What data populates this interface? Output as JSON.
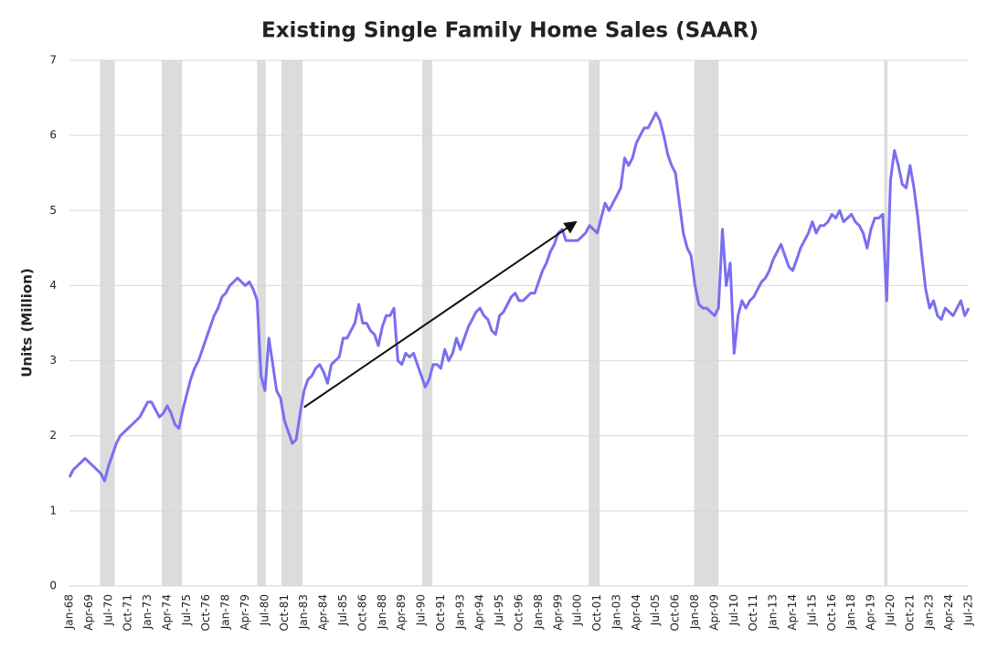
{
  "chart_data": {
    "type": "line",
    "title": "Existing Single Family Home Sales (SAAR)",
    "y_label": "Units (Million)",
    "categories": [
      "Jan-68",
      null,
      null,
      null,
      null,
      "Apr-69",
      null,
      null,
      null,
      null,
      "Jul-70",
      null,
      null,
      null,
      null,
      "Oct-71",
      null,
      null,
      null,
      null,
      "Jan-73",
      null,
      null,
      null,
      null,
      "Apr-74",
      null,
      null,
      null,
      null,
      "Jul-75",
      null,
      null,
      null,
      null,
      "Oct-76",
      null,
      null,
      null,
      null,
      "Jan-78",
      null,
      null,
      null,
      null,
      "Apr-79",
      null,
      null,
      null,
      null,
      "Jul-80",
      null,
      null,
      null,
      null,
      "Oct-81",
      null,
      null,
      null,
      null,
      "Jan-83",
      null,
      null,
      null,
      null,
      "Apr-84",
      null,
      null,
      null,
      null,
      "Jul-85",
      null,
      null,
      null,
      null,
      "Oct-86",
      null,
      null,
      null,
      null,
      "Jan-88",
      null,
      null,
      null,
      null,
      "Apr-89",
      null,
      null,
      null,
      null,
      "Jul-90",
      null,
      null,
      null,
      null,
      "Oct-91",
      null,
      null,
      null,
      null,
      "Jan-93",
      null,
      null,
      null,
      null,
      "Apr-94",
      null,
      null,
      null,
      null,
      "Jul-95",
      null,
      null,
      null,
      null,
      "Oct-96",
      null,
      null,
      null,
      null,
      "Jan-98",
      null,
      null,
      null,
      null,
      "Apr-99",
      null,
      null,
      null,
      null,
      "Jul-00",
      null,
      null,
      null,
      null,
      "Oct-01",
      null,
      null,
      null,
      null,
      "Jan-03",
      null,
      null,
      null,
      null,
      "Apr-04",
      null,
      null,
      null,
      null,
      "Jul-05",
      null,
      null,
      null,
      null,
      "Oct-06",
      null,
      null,
      null,
      null,
      "Jan-08",
      null,
      null,
      null,
      null,
      "Apr-09",
      null,
      null,
      null,
      null,
      "Jul-10",
      null,
      null,
      null,
      null,
      "Oct-11",
      null,
      null,
      null,
      null,
      "Jan-13",
      null,
      null,
      null,
      null,
      "Apr-14",
      null,
      null,
      null,
      null,
      "Jul-15",
      null,
      null,
      null,
      null,
      "Oct-16",
      null,
      null,
      null,
      null,
      "Jan-18",
      null,
      null,
      null,
      null,
      "Apr-19",
      null,
      null,
      null,
      null,
      "Jul-20",
      null,
      null,
      null,
      null,
      "Oct-21",
      null,
      null,
      null,
      null,
      "Jan-23",
      null,
      null,
      null,
      null,
      "Apr-24",
      null,
      null,
      null,
      null,
      "Jul-25"
    ],
    "values": [
      1.45,
      1.55,
      1.6,
      1.65,
      1.7,
      1.65,
      1.6,
      1.55,
      1.5,
      1.4,
      1.6,
      1.75,
      1.9,
      2.0,
      2.05,
      2.1,
      2.15,
      2.2,
      2.25,
      2.35,
      2.45,
      2.45,
      2.35,
      2.25,
      2.3,
      2.4,
      2.3,
      2.15,
      2.1,
      2.35,
      2.55,
      2.75,
      2.9,
      3.0,
      3.15,
      3.3,
      3.45,
      3.6,
      3.7,
      3.85,
      3.9,
      4.0,
      4.05,
      4.1,
      4.05,
      4.0,
      4.05,
      3.95,
      3.8,
      2.8,
      2.6,
      3.3,
      2.95,
      2.6,
      2.5,
      2.2,
      2.05,
      1.9,
      1.95,
      2.3,
      2.6,
      2.75,
      2.8,
      2.9,
      2.95,
      2.85,
      2.7,
      2.95,
      3.0,
      3.05,
      3.3,
      3.3,
      3.4,
      3.5,
      3.75,
      3.5,
      3.5,
      3.4,
      3.35,
      3.2,
      3.45,
      3.6,
      3.6,
      3.7,
      3.0,
      2.95,
      3.1,
      3.05,
      3.1,
      2.95,
      2.8,
      2.65,
      2.75,
      2.95,
      2.95,
      2.9,
      3.15,
      3.0,
      3.1,
      3.3,
      3.15,
      3.3,
      3.45,
      3.55,
      3.65,
      3.7,
      3.6,
      3.55,
      3.4,
      3.35,
      3.6,
      3.65,
      3.75,
      3.85,
      3.9,
      3.8,
      3.8,
      3.85,
      3.9,
      3.9,
      4.05,
      4.2,
      4.3,
      4.45,
      4.55,
      4.7,
      4.75,
      4.6,
      4.6,
      4.6,
      4.6,
      4.65,
      4.7,
      4.8,
      4.75,
      4.7,
      4.9,
      5.1,
      5.0,
      5.1,
      5.2,
      5.3,
      5.7,
      5.6,
      5.7,
      5.9,
      6.0,
      6.1,
      6.1,
      6.2,
      6.3,
      6.2,
      6.0,
      5.75,
      5.6,
      5.5,
      5.1,
      4.7,
      4.5,
      4.4,
      4.0,
      3.75,
      3.7,
      3.7,
      3.65,
      3.6,
      3.7,
      4.75,
      4.0,
      4.3,
      3.1,
      3.6,
      3.8,
      3.7,
      3.8,
      3.85,
      3.95,
      4.05,
      4.1,
      4.2,
      4.35,
      4.45,
      4.55,
      4.4,
      4.25,
      4.2,
      4.35,
      4.5,
      4.6,
      4.7,
      4.85,
      4.7,
      4.8,
      4.8,
      4.85,
      4.95,
      4.9,
      5.0,
      4.85,
      4.9,
      4.95,
      4.85,
      4.8,
      4.7,
      4.5,
      4.75,
      4.9,
      4.9,
      4.95,
      3.8,
      5.4,
      5.8,
      5.6,
      5.35,
      5.3,
      5.6,
      5.3,
      4.9,
      4.4,
      3.95,
      3.7,
      3.8,
      3.6,
      3.55,
      3.7,
      3.65,
      3.6,
      3.7,
      3.8,
      3.6,
      3.7
    ],
    "color": "#7b6ef0",
    "ylim": [
      0,
      7
    ],
    "yticks": [
      0,
      1,
      2,
      3,
      4,
      5,
      6,
      7
    ],
    "grid": true,
    "bands": [
      [
        1969.95,
        1970.9
      ],
      [
        1973.9,
        1975.2
      ],
      [
        1980.0,
        1980.55
      ],
      [
        1981.55,
        1982.9
      ],
      [
        1990.55,
        1991.2
      ],
      [
        2001.2,
        2001.9
      ],
      [
        2007.95,
        2009.5
      ],
      [
        2020.1,
        2020.3
      ]
    ],
    "band_color": "#dcdcdc",
    "arrow": {
      "from": [
        1983.0,
        2.38
      ],
      "to": [
        2000.4,
        4.85
      ]
    }
  }
}
